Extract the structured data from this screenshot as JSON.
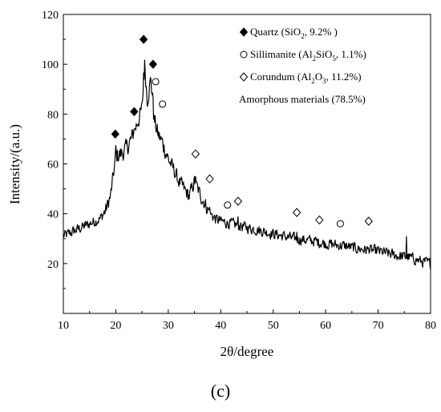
{
  "chart_data": {
    "type": "line",
    "xlabel": "2θ/degree",
    "ylabel": "Intensity/(a.u.)",
    "xlim": [
      10,
      80
    ],
    "ylim": [
      0,
      120
    ],
    "xticks": [
      10,
      20,
      30,
      40,
      50,
      60,
      70,
      80
    ],
    "yticks": [
      20,
      40,
      60,
      80,
      100,
      120
    ],
    "grid": false,
    "legend_position": "top-right",
    "panel_label": "(c)",
    "profile": {
      "x": [
        10,
        12,
        14,
        16,
        17,
        18,
        19,
        19.5,
        20,
        21,
        22,
        23,
        24,
        25,
        25.5,
        26,
        26.7,
        27.3,
        28,
        29,
        30,
        31,
        32,
        33,
        34,
        35,
        36,
        37,
        38,
        39,
        40,
        42,
        44,
        46,
        48,
        50,
        52,
        54,
        56,
        58,
        60,
        62,
        64,
        66,
        68,
        70,
        72,
        74,
        76,
        78,
        80
      ],
      "y": [
        31,
        33,
        35,
        37,
        38,
        41,
        47,
        55,
        63,
        64,
        66,
        70,
        76,
        82,
        100,
        86,
        94,
        78,
        72,
        68,
        62,
        58,
        53,
        50,
        47,
        53,
        48,
        44,
        40,
        38,
        37,
        36,
        35,
        34,
        33,
        32,
        31,
        30,
        29.5,
        29,
        28,
        27.5,
        27,
        26,
        25.5,
        25,
        24,
        23,
        22.5,
        21,
        20
      ]
    },
    "series": [
      {
        "name": "Quartz (SiO₂, 9.2% )",
        "marker": "filled-diamond",
        "points": [
          [
            19.9,
            72
          ],
          [
            23.5,
            81
          ],
          [
            25.3,
            110
          ],
          [
            27.1,
            100
          ]
        ]
      },
      {
        "name": "Sillimanite (Al₂SiO₅, 1.1%)",
        "marker": "open-circle",
        "points": [
          [
            27.6,
            93
          ],
          [
            28.9,
            84
          ],
          [
            41.3,
            43.5
          ],
          [
            62.8,
            36
          ]
        ]
      },
      {
        "name": "Corundum (Al₂O₃, 11.2%)",
        "marker": "open-diamond",
        "points": [
          [
            35.2,
            64
          ],
          [
            37.9,
            54
          ],
          [
            43.3,
            45
          ],
          [
            54.5,
            40.5
          ],
          [
            58.8,
            37.5
          ],
          [
            68.2,
            37
          ]
        ]
      }
    ],
    "legend": [
      {
        "marker": "filled-diamond",
        "pre": "Quartz (SiO",
        "sub": "2",
        "post": ", 9.2% )"
      },
      {
        "marker": "open-circle",
        "pre": "Sillimanite (Al",
        "sub": "2",
        "mid": "SiO",
        "sub2": "5",
        "post": ", 1.1%)"
      },
      {
        "marker": "open-diamond",
        "pre": "Corundum (Al",
        "sub": "2",
        "mid": "O",
        "sub2": "3",
        "post": ", 11.2%)"
      },
      {
        "marker": "none",
        "pre": "Amorphous materials (78.5%)"
      }
    ]
  }
}
